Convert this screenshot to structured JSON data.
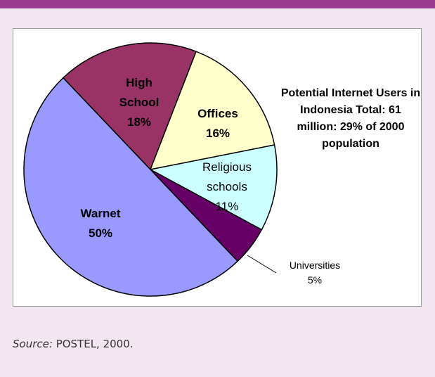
{
  "chart_data": {
    "type": "pie",
    "categories": [
      "High School",
      "Offices",
      "Religious schools",
      "Universities",
      "Warnet"
    ],
    "values": [
      18,
      16,
      11,
      5,
      50
    ],
    "value_labels": [
      "18%",
      "16%",
      "11%",
      "5%",
      "50%"
    ],
    "colors": [
      "#993366",
      "#ffffcc",
      "#ccffff",
      "#660066",
      "#9999ff"
    ],
    "annotation": "Potential Internet Users in Indonesia Total: 61 million: 29% of 2000 population"
  },
  "source": {
    "label": "Source:",
    "text": "POSTEL, 2000."
  }
}
